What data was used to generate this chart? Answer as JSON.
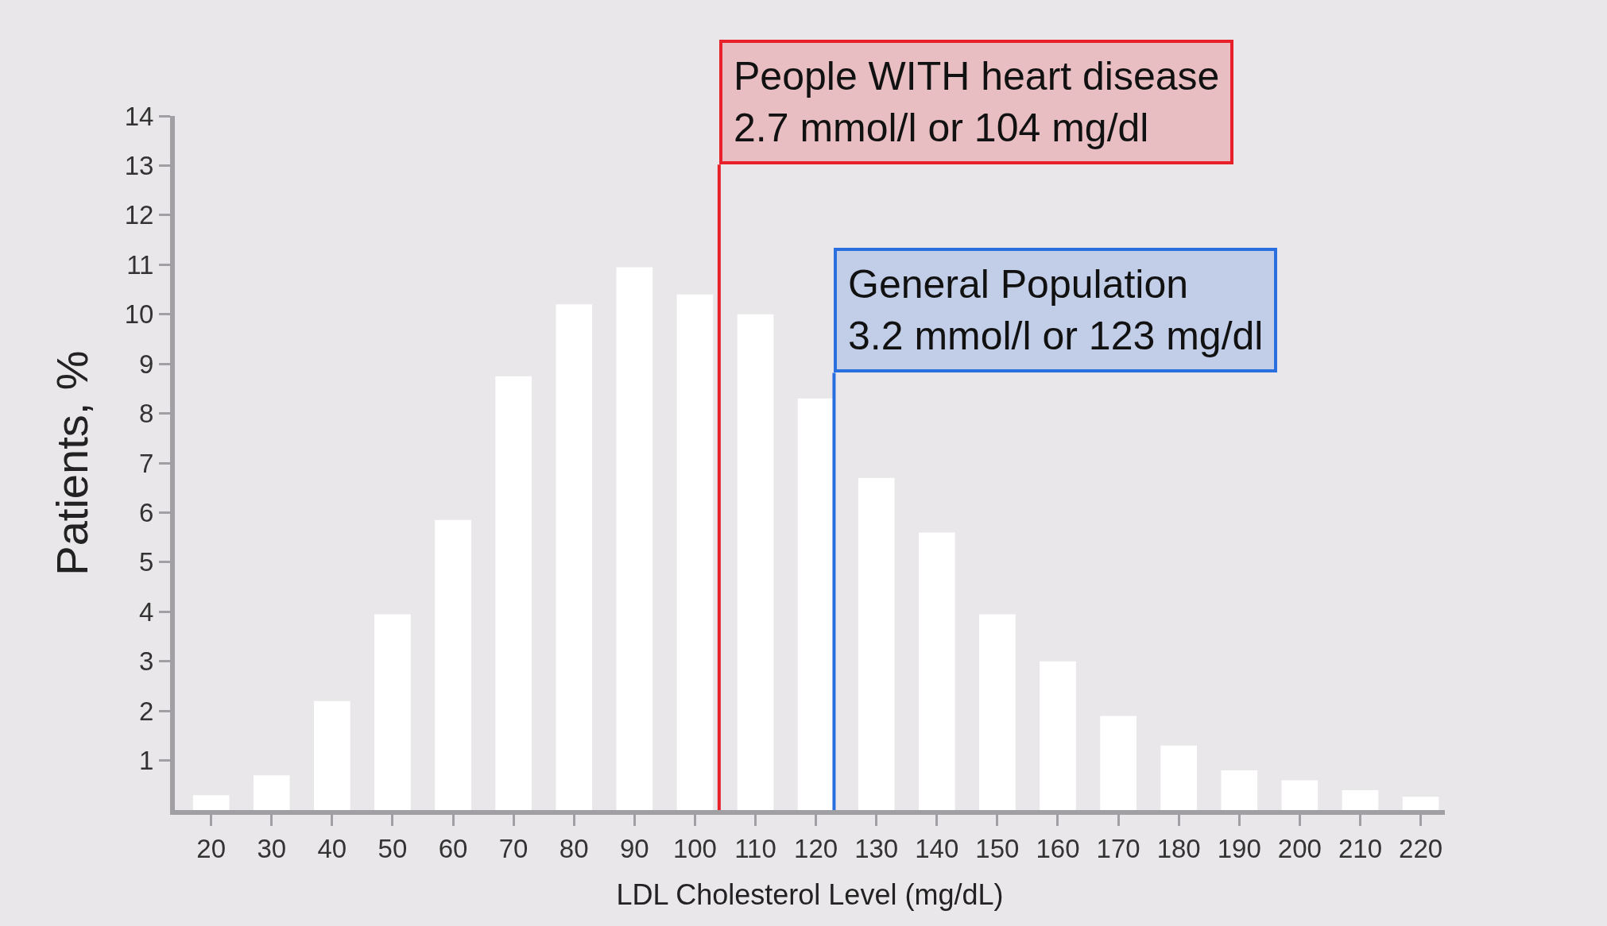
{
  "chart_data": {
    "type": "bar",
    "xlabel": "LDL Cholesterol Level (mg/dL)",
    "ylabel": "Patients, %",
    "x": [
      20,
      30,
      40,
      50,
      60,
      70,
      80,
      90,
      100,
      110,
      120,
      130,
      140,
      150,
      160,
      170,
      180,
      190,
      200,
      210,
      220
    ],
    "values": [
      0.3,
      0.7,
      2.2,
      3.95,
      5.85,
      8.75,
      10.2,
      10.95,
      10.4,
      10.0,
      8.3,
      6.7,
      5.6,
      3.95,
      3.0,
      1.9,
      1.3,
      0.8,
      0.6,
      0.4,
      0.27
    ],
    "color": "#ffffff",
    "xlim": [
      14,
      224
    ],
    "xticks": [
      20,
      30,
      40,
      50,
      60,
      70,
      80,
      90,
      100,
      110,
      120,
      130,
      140,
      150,
      160,
      170,
      180,
      190,
      200,
      210,
      220
    ],
    "ylim": [
      0,
      14
    ],
    "yticks": [
      1,
      2,
      3,
      4,
      5,
      6,
      7,
      8,
      9,
      10,
      11,
      12,
      13,
      14
    ],
    "grid": false,
    "ref_lines": [
      {
        "axis": "x",
        "value": 104,
        "label": "People WITH heart disease\n2.7 mmol/l or 104 mg/dl",
        "color": "#e8202a"
      },
      {
        "axis": "x",
        "value": 123,
        "label": "General Population\n3.2 mmol/l or 123 mg/dl",
        "color": "#2a6fe0"
      }
    ]
  }
}
